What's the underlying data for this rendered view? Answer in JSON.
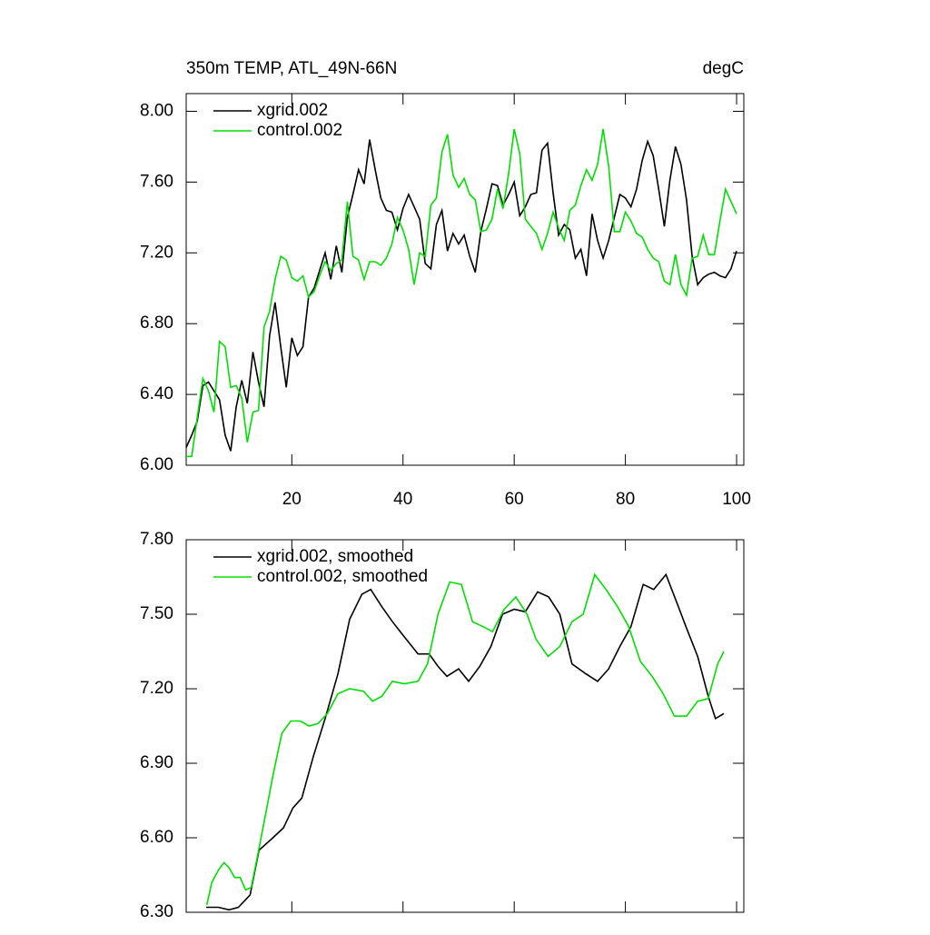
{
  "chart_data": [
    {
      "type": "line",
      "title": "350m TEMP, ATL_49N-66N",
      "right_title": "degC",
      "x": [
        1,
        2,
        3,
        4,
        5,
        6,
        7,
        8,
        9,
        10,
        11,
        12,
        13,
        14,
        15,
        16,
        17,
        18,
        19,
        20,
        21,
        22,
        23,
        24,
        25,
        26,
        27,
        28,
        29,
        30,
        31,
        32,
        33,
        34,
        35,
        36,
        37,
        38,
        39,
        40,
        41,
        42,
        43,
        44,
        45,
        46,
        47,
        48,
        49,
        50,
        51,
        52,
        53,
        54,
        55,
        56,
        57,
        58,
        59,
        60,
        61,
        62,
        63,
        64,
        65,
        66,
        67,
        68,
        69,
        70,
        71,
        72,
        73,
        74,
        75,
        76,
        77,
        78,
        79,
        80,
        81,
        82,
        83,
        84,
        85,
        86,
        87,
        88,
        89,
        90,
        91,
        92,
        93,
        94,
        95,
        96,
        97,
        98,
        99,
        100
      ],
      "series": [
        {
          "name": "xgrid.002",
          "color": "#000000",
          "values": [
            6.1,
            6.17,
            6.25,
            6.45,
            6.47,
            6.42,
            6.37,
            6.17,
            6.08,
            6.33,
            6.48,
            6.35,
            6.64,
            6.47,
            6.33,
            6.73,
            6.92,
            6.67,
            6.44,
            6.72,
            6.62,
            6.67,
            6.95,
            7.0,
            7.1,
            7.2,
            7.05,
            7.24,
            7.09,
            7.4,
            7.53,
            7.67,
            7.59,
            7.84,
            7.67,
            7.51,
            7.44,
            7.43,
            7.33,
            7.45,
            7.53,
            7.46,
            7.39,
            7.14,
            7.11,
            7.36,
            7.44,
            7.21,
            7.31,
            7.25,
            7.3,
            7.18,
            7.09,
            7.32,
            7.45,
            7.59,
            7.58,
            7.47,
            7.53,
            7.6,
            7.41,
            7.46,
            7.53,
            7.54,
            7.78,
            7.82,
            7.54,
            7.3,
            7.36,
            7.33,
            7.17,
            7.22,
            7.07,
            7.42,
            7.27,
            7.17,
            7.27,
            7.4,
            7.53,
            7.51,
            7.46,
            7.56,
            7.72,
            7.83,
            7.75,
            7.56,
            7.35,
            7.61,
            7.8,
            7.7,
            7.5,
            7.18,
            7.02,
            7.06,
            7.08,
            7.09,
            7.07,
            7.06,
            7.11,
            7.21
          ]
        },
        {
          "name": "control.002",
          "color": "#00e000",
          "values": [
            6.05,
            6.05,
            6.27,
            6.49,
            6.42,
            6.3,
            6.7,
            6.67,
            6.44,
            6.45,
            6.38,
            6.13,
            6.3,
            6.31,
            6.78,
            6.87,
            7.05,
            7.18,
            7.16,
            7.06,
            7.04,
            7.07,
            6.95,
            6.98,
            7.07,
            7.15,
            7.1,
            7.14,
            7.16,
            7.49,
            7.18,
            7.16,
            7.05,
            7.15,
            7.15,
            7.13,
            7.17,
            7.25,
            7.4,
            7.33,
            7.22,
            7.02,
            7.2,
            7.18,
            7.47,
            7.51,
            7.77,
            7.87,
            7.64,
            7.57,
            7.62,
            7.53,
            7.5,
            7.32,
            7.33,
            7.39,
            7.56,
            7.45,
            7.65,
            7.9,
            7.76,
            7.39,
            7.35,
            7.31,
            7.22,
            7.31,
            7.43,
            7.34,
            7.27,
            7.44,
            7.47,
            7.58,
            7.67,
            7.61,
            7.7,
            7.9,
            7.69,
            7.32,
            7.32,
            7.43,
            7.38,
            7.31,
            7.29,
            7.22,
            7.17,
            7.15,
            7.04,
            7.02,
            7.19,
            7.02,
            6.96,
            7.17,
            7.18,
            7.3,
            7.19,
            7.19,
            7.38,
            7.56,
            7.49,
            7.42
          ]
        }
      ],
      "xlim": [
        1,
        101.3
      ],
      "xticks": [
        20,
        40,
        60,
        80,
        100
      ],
      "ylim": [
        6,
        8.1
      ],
      "yticks": [
        {
          "value": 6,
          "label": "6.00"
        },
        {
          "value": 6.4,
          "label": "6.40"
        },
        {
          "value": 6.8,
          "label": "6.80"
        },
        {
          "value": 7.2,
          "label": "7.20"
        },
        {
          "value": 7.6,
          "label": "7.60"
        },
        {
          "value": 8,
          "label": "8.00"
        }
      ]
    },
    {
      "type": "line",
      "series": [
        {
          "name": "xgrid.002, smoothed",
          "color": "#000000",
          "x": [
            4.6,
            6.8,
            8.7,
            10.4,
            12.5,
            14.1,
            16.6,
            18.5,
            20.2,
            21.8,
            23.9,
            26,
            28.3,
            30.4,
            32.6,
            34.2,
            36.2,
            38.1,
            40.2,
            42.7,
            44.7,
            46.3,
            47.9,
            50,
            51.8,
            53.8,
            55.8,
            57.9,
            60,
            62,
            64.2,
            66.2,
            68.2,
            70.4,
            72.9,
            75,
            77,
            79,
            81,
            83.2,
            85.1,
            87.3,
            89.2,
            90.9,
            93,
            94.9,
            96.2,
            97.7
          ],
          "values": [
            6.32,
            6.32,
            6.31,
            6.32,
            6.37,
            6.55,
            6.6,
            6.64,
            6.72,
            6.76,
            6.93,
            7.08,
            7.26,
            7.48,
            7.58,
            7.6,
            7.53,
            7.47,
            7.41,
            7.34,
            7.34,
            7.29,
            7.25,
            7.28,
            7.23,
            7.29,
            7.37,
            7.5,
            7.52,
            7.51,
            7.59,
            7.57,
            7.5,
            7.3,
            7.26,
            7.23,
            7.28,
            7.37,
            7.45,
            7.62,
            7.6,
            7.66,
            7.55,
            7.45,
            7.33,
            7.17,
            7.08,
            7.1
          ]
        },
        {
          "name": "control.002, smoothed",
          "color": "#00e000",
          "x": [
            4.7,
            5.6,
            6.8,
            7.8,
            8.7,
            9.7,
            10.7,
            11.7,
            12.7,
            13.6,
            14.9,
            16.6,
            18.2,
            19.8,
            21.5,
            23.1,
            24.7,
            26.4,
            28.3,
            30.4,
            32.9,
            34.5,
            36.2,
            38.1,
            40.2,
            42.7,
            44.4,
            46.3,
            48.4,
            50.5,
            52.5,
            54.4,
            56.1,
            58.2,
            60.3,
            62.3,
            63.9,
            66.1,
            68.2,
            70.4,
            72.4,
            74.5,
            76.5,
            78.6,
            80.6,
            82.7,
            84.8,
            86.8,
            88.8,
            91,
            93,
            94.9,
            96.6,
            97.7
          ],
          "values": [
            6.33,
            6.42,
            6.47,
            6.5,
            6.48,
            6.44,
            6.44,
            6.39,
            6.4,
            6.5,
            6.65,
            6.85,
            7.02,
            7.07,
            7.07,
            7.05,
            7.06,
            7.1,
            7.18,
            7.2,
            7.19,
            7.15,
            7.17,
            7.23,
            7.22,
            7.23,
            7.3,
            7.5,
            7.63,
            7.62,
            7.47,
            7.45,
            7.43,
            7.52,
            7.57,
            7.5,
            7.4,
            7.33,
            7.37,
            7.47,
            7.5,
            7.66,
            7.6,
            7.53,
            7.45,
            7.31,
            7.25,
            7.18,
            7.09,
            7.09,
            7.15,
            7.16,
            7.3,
            7.35
          ]
        }
      ],
      "xlim": [
        1,
        101.3
      ],
      "xticks": [
        20,
        40,
        60,
        80,
        100
      ],
      "ylim": [
        6.3,
        7.8
      ],
      "yticks": [
        {
          "value": 6.3,
          "label": "6.30"
        },
        {
          "value": 6.6,
          "label": "6.60"
        },
        {
          "value": 6.9,
          "label": "6.90"
        },
        {
          "value": 7.2,
          "label": "7.20"
        },
        {
          "value": 7.5,
          "label": "7.50"
        },
        {
          "value": 7.8,
          "label": "7.80"
        }
      ]
    }
  ]
}
